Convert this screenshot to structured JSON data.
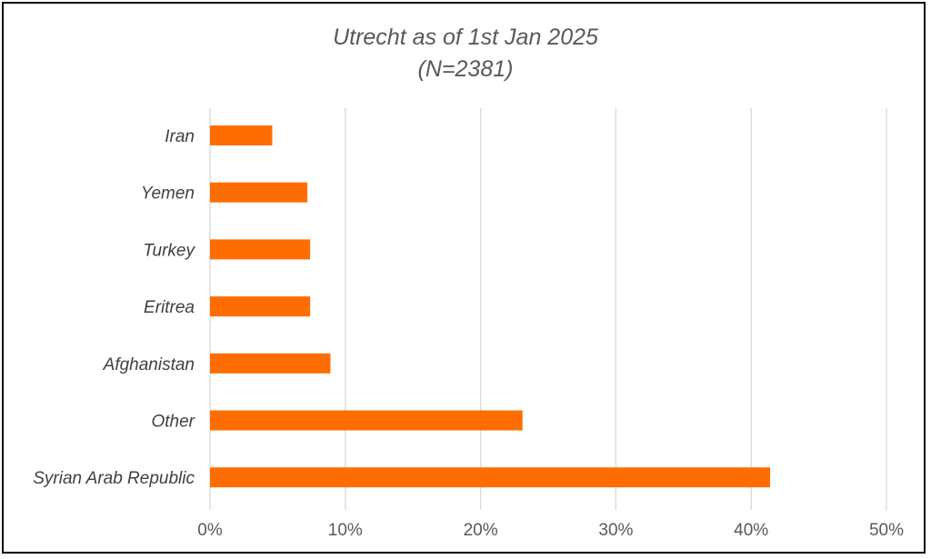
{
  "chart_data": {
    "type": "bar",
    "orientation": "horizontal",
    "title": "Utrecht as of 1st Jan 2025",
    "subtitle": "(N=2381)",
    "categories": [
      "Iran",
      "Yemen",
      "Turkey",
      "Eritrea",
      "Afghanistan",
      "Other",
      "Syrian Arab Republic"
    ],
    "values": [
      4.6,
      7.2,
      7.4,
      7.4,
      8.9,
      23.1,
      41.4
    ],
    "value_unit": "%",
    "xlim": [
      0,
      50
    ],
    "x_ticks": [
      "0%",
      "10%",
      "20%",
      "30%",
      "40%",
      "50%"
    ],
    "xlabel": "",
    "ylabel": "",
    "grid": true,
    "legend": "none",
    "bar_color": "#ff6d00"
  }
}
